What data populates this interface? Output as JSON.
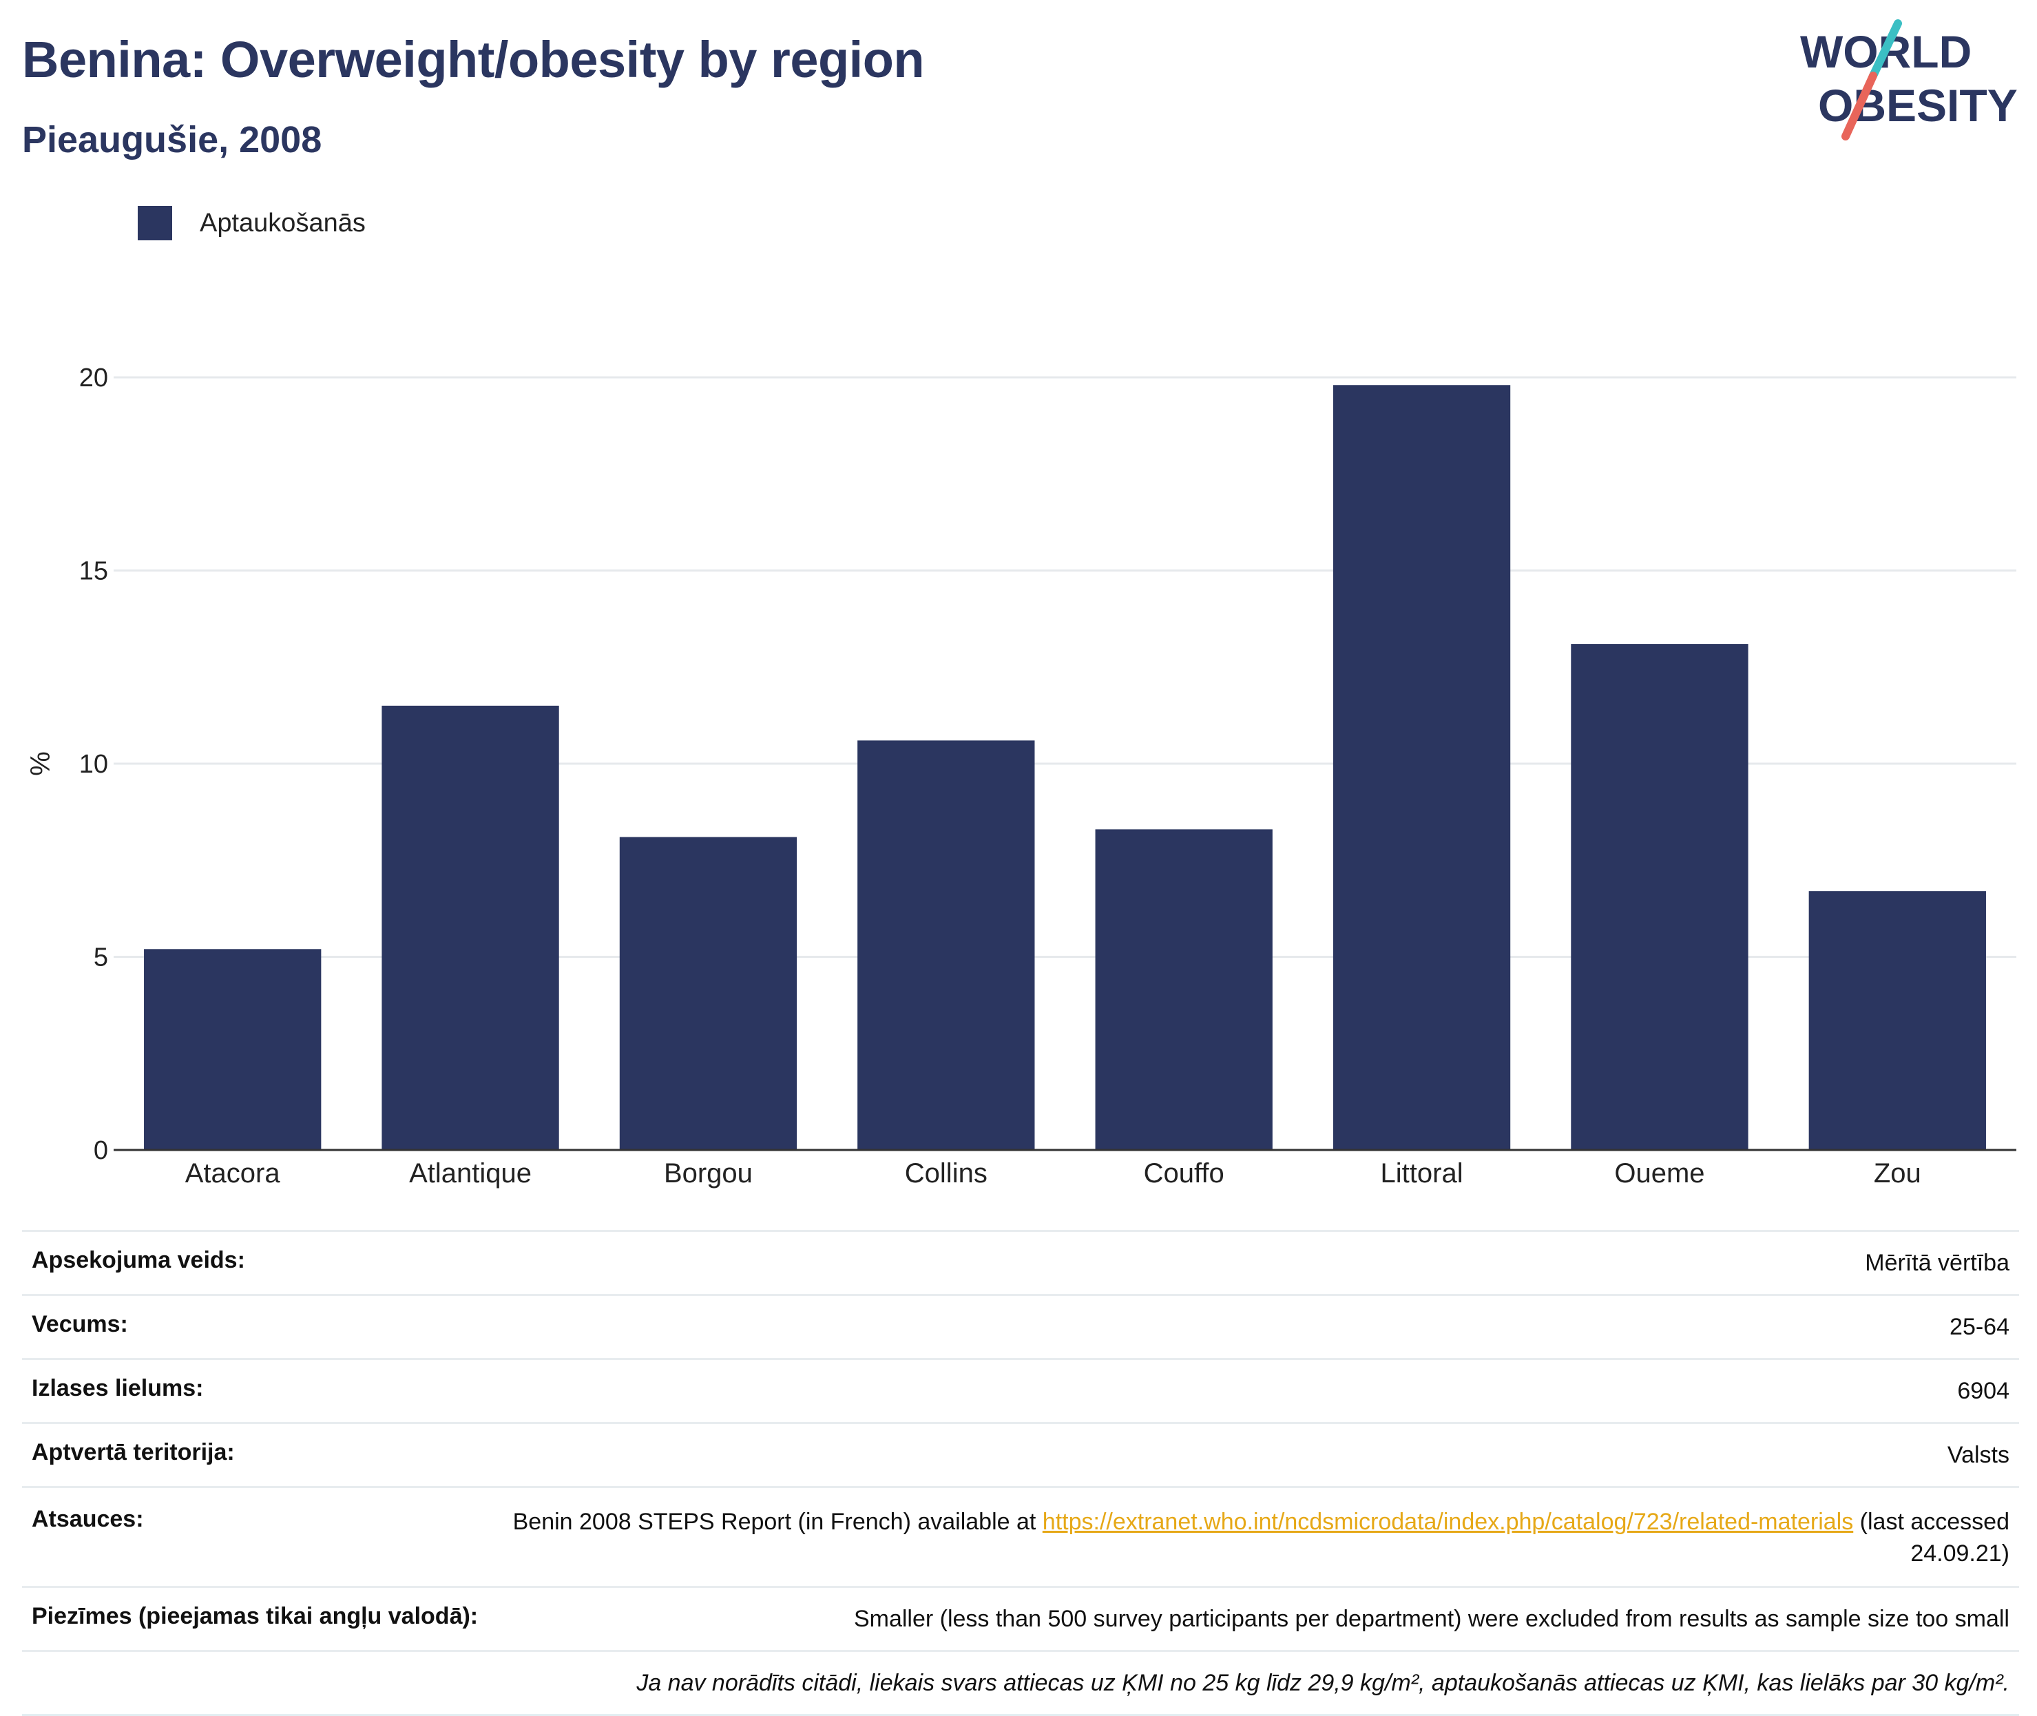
{
  "header": {
    "title": "Benina: Overweight/obesity by region",
    "subtitle": "Pieaugušie, 2008"
  },
  "logo": {
    "line1": "WORLD",
    "line2": "OBESITY",
    "colors": {
      "text": "#2b3660",
      "slash_top": "#3bbfc4",
      "slash_bottom": "#e8655a"
    }
  },
  "colors": {
    "bar": "#2b3660",
    "grid": "#e6e9ec",
    "axis": "#333333",
    "link": "#e6a817"
  },
  "chart_data": {
    "type": "bar",
    "title": "Benina: Overweight/obesity by region",
    "subtitle": "Pieaugušie, 2008",
    "categories": [
      "Atacora",
      "Atlantique",
      "Borgou",
      "Collins",
      "Couffo",
      "Littoral",
      "Oueme",
      "Zou"
    ],
    "series": [
      {
        "name": "Aptaukošanās",
        "values": [
          5.2,
          11.5,
          8.1,
          10.6,
          8.3,
          19.8,
          13.1,
          6.7
        ]
      }
    ],
    "xlabel": "",
    "ylabel": "%",
    "ylim": [
      0,
      20
    ],
    "yticks": [
      "0",
      "5",
      "10",
      "15",
      "20"
    ],
    "grid": true,
    "legend_position": "top-left"
  },
  "meta": {
    "rows": [
      {
        "key": "Apsekojuma veids:",
        "value": "Mērītā vērtība"
      },
      {
        "key": "Vecums:",
        "value": "25-64"
      },
      {
        "key": "Izlases lielums:",
        "value": "6904"
      },
      {
        "key": "Aptvertā teritorija:",
        "value": "Valsts"
      }
    ],
    "sources": {
      "key": "Atsauces:",
      "prefix": "Benin 2008 STEPS Report (in French) available at ",
      "link": "https://extranet.who.int/ncdsmicrodata/index.php/catalog/723/related-materials",
      "suffix": " (last accessed 24.09.21)"
    },
    "notes": {
      "key": "Piezīmes (pieejamas tikai angļu valodā):",
      "value": "Smaller (less than 500 survey participants per department) were excluded from results as sample size too small"
    },
    "footnote": "Ja nav norādīts citādi, liekais svars attiecas uz ĶMI no 25 kg līdz 29,9 kg/m², aptaukošanās attiecas uz ĶMI, kas lielāks par 30 kg/m²."
  }
}
